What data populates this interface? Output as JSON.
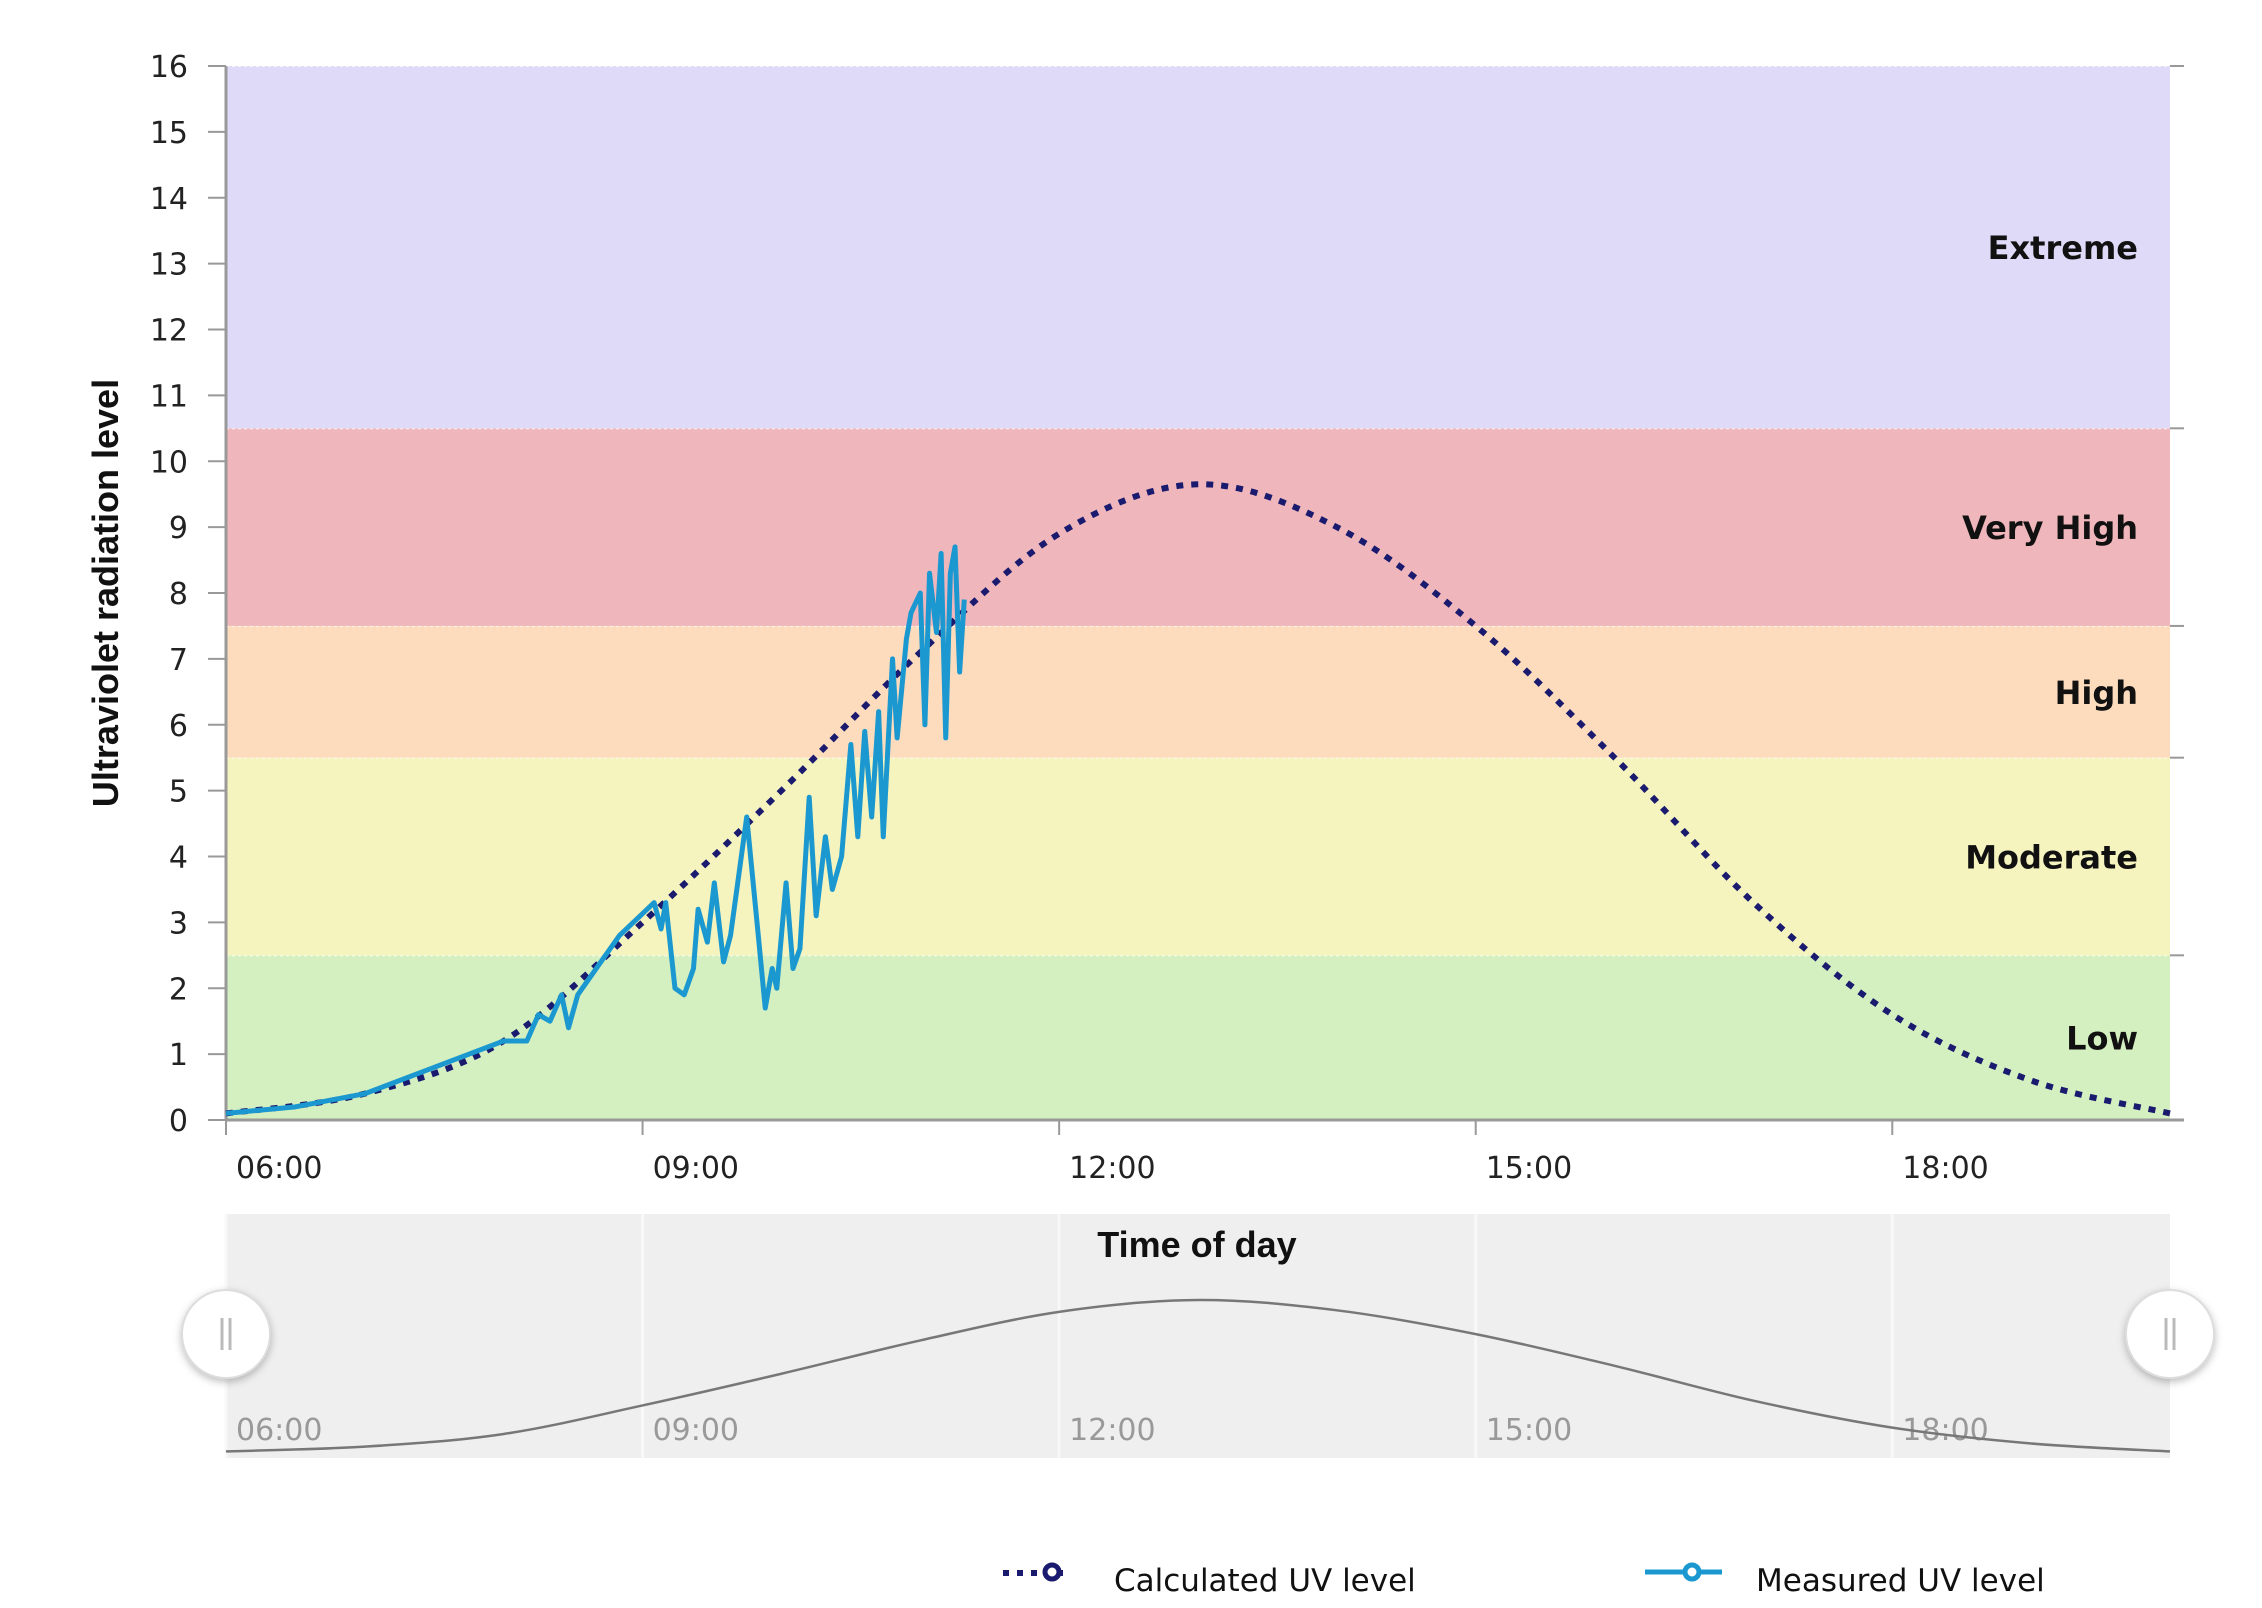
{
  "chart_data": {
    "type": "line",
    "xlabel": "Time of day",
    "ylabel": "Ultraviolet radiation level",
    "xlim": [
      "06:00",
      "20:00"
    ],
    "ylim": [
      0,
      16
    ],
    "x_ticks": [
      "06:00",
      "09:00",
      "12:00",
      "15:00",
      "18:00"
    ],
    "y_ticks": [
      "0",
      "1",
      "2",
      "3",
      "4",
      "5",
      "6",
      "7",
      "8",
      "9",
      "10",
      "11",
      "12",
      "13",
      "14",
      "15",
      "16"
    ],
    "grid": false,
    "legend_position": "bottom",
    "bands": [
      {
        "label": "Low",
        "from": 0,
        "to": 2.5,
        "color": "#d5f0c0"
      },
      {
        "label": "Moderate",
        "from": 2.5,
        "to": 5.5,
        "color": "#f6f4be"
      },
      {
        "label": "High",
        "from": 5.5,
        "to": 7.5,
        "color": "#fcdcbd"
      },
      {
        "label": "Very High",
        "from": 7.5,
        "to": 10.5,
        "color": "#efb7bb"
      },
      {
        "label": "Extreme",
        "from": 10.5,
        "to": 16,
        "color": "#dfdaf7"
      }
    ],
    "series": [
      {
        "name": "Calculated UV level",
        "style": "dotted",
        "color": "#1a1a6e",
        "points": [
          [
            "06:00",
            0.1
          ],
          [
            "07:00",
            0.4
          ],
          [
            "08:00",
            1.2
          ],
          [
            "09:00",
            3.0
          ],
          [
            "10:00",
            5.0
          ],
          [
            "11:00",
            7.1
          ],
          [
            "12:00",
            8.9
          ],
          [
            "13:00",
            9.65
          ],
          [
            "14:00",
            9.0
          ],
          [
            "15:00",
            7.5
          ],
          [
            "16:00",
            5.5
          ],
          [
            "17:00",
            3.3
          ],
          [
            "18:00",
            1.6
          ],
          [
            "19:00",
            0.6
          ],
          [
            "20:00",
            0.1
          ]
        ]
      },
      {
        "name": "Measured UV level",
        "style": "solid",
        "color": "#1b98d0",
        "points": [
          [
            "06:00",
            0.1
          ],
          [
            "06:30",
            0.2
          ],
          [
            "07:00",
            0.4
          ],
          [
            "07:30",
            0.8
          ],
          [
            "08:00",
            1.2
          ],
          [
            "08:10",
            1.2
          ],
          [
            "08:15",
            1.6
          ],
          [
            "08:20",
            1.5
          ],
          [
            "08:25",
            1.9
          ],
          [
            "08:28",
            1.4
          ],
          [
            "08:32",
            1.9
          ],
          [
            "08:40",
            2.3
          ],
          [
            "08:50",
            2.8
          ],
          [
            "09:05",
            3.3
          ],
          [
            "09:08",
            2.9
          ],
          [
            "09:10",
            3.3
          ],
          [
            "09:14",
            2.0
          ],
          [
            "09:18",
            1.9
          ],
          [
            "09:22",
            2.3
          ],
          [
            "09:24",
            3.2
          ],
          [
            "09:28",
            2.7
          ],
          [
            "09:31",
            3.6
          ],
          [
            "09:35",
            2.4
          ],
          [
            "09:38",
            2.8
          ],
          [
            "09:45",
            4.6
          ],
          [
            "09:50",
            2.8
          ],
          [
            "09:53",
            1.7
          ],
          [
            "09:56",
            2.3
          ],
          [
            "09:58",
            2.0
          ],
          [
            "10:02",
            3.6
          ],
          [
            "10:05",
            2.3
          ],
          [
            "10:08",
            2.6
          ],
          [
            "10:12",
            4.9
          ],
          [
            "10:15",
            3.1
          ],
          [
            "10:19",
            4.3
          ],
          [
            "10:22",
            3.5
          ],
          [
            "10:26",
            4.0
          ],
          [
            "10:30",
            5.7
          ],
          [
            "10:33",
            4.3
          ],
          [
            "10:36",
            5.9
          ],
          [
            "10:39",
            4.6
          ],
          [
            "10:42",
            6.2
          ],
          [
            "10:44",
            4.3
          ],
          [
            "10:48",
            7.0
          ],
          [
            "10:50",
            5.8
          ],
          [
            "10:54",
            7.3
          ],
          [
            "10:56",
            7.7
          ],
          [
            "11:00",
            8.0
          ],
          [
            "11:02",
            6.0
          ],
          [
            "11:04",
            8.3
          ],
          [
            "11:07",
            7.4
          ],
          [
            "11:09",
            8.6
          ],
          [
            "11:11",
            5.8
          ],
          [
            "11:13",
            8.3
          ],
          [
            "11:15",
            8.7
          ],
          [
            "11:17",
            6.8
          ],
          [
            "11:19",
            7.9
          ]
        ]
      }
    ]
  },
  "legend": {
    "calculated": "Calculated UV level",
    "measured": "Measured UV level"
  },
  "navigator": {
    "x_ticks": [
      "06:00",
      "09:00",
      "12:00",
      "15:00",
      "18:00"
    ],
    "range": [
      "06:00",
      "20:00"
    ]
  }
}
